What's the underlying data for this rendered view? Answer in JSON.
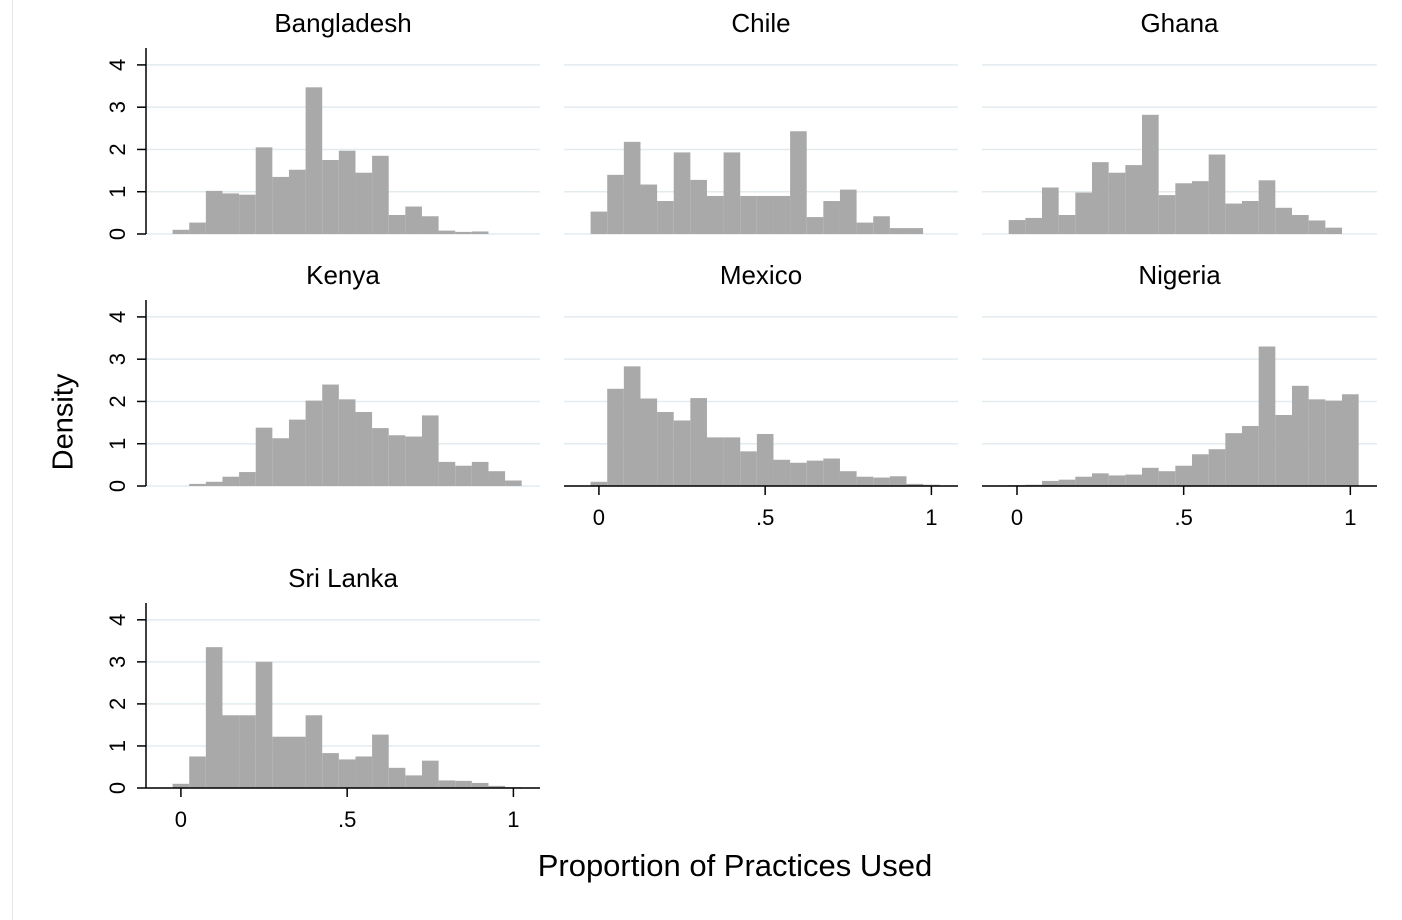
{
  "ylabel": "Density",
  "xlabel": "Proportion of Practices Used",
  "chart_data": [
    {
      "type": "histogram",
      "title": "Bangladesh",
      "color": "#a9a9a9",
      "grid": true,
      "bins": [
        -0.025,
        0.025,
        0.075,
        0.125,
        0.175,
        0.225,
        0.275,
        0.325,
        0.375,
        0.425,
        0.475,
        0.525,
        0.575,
        0.625,
        0.675,
        0.725,
        0.775,
        0.825,
        0.875,
        0.925,
        0.975,
        1.025
      ],
      "values": [
        0.1,
        0.27,
        1.02,
        0.96,
        0.93,
        2.05,
        1.35,
        1.52,
        3.47,
        1.75,
        1.97,
        1.45,
        1.85,
        0.45,
        0.65,
        0.42,
        0.08,
        0.05,
        0.06,
        0,
        0
      ],
      "xlim": [
        -0.105,
        1.08
      ],
      "ylim": [
        0,
        4.4
      ],
      "yticks": [
        0,
        1,
        2,
        3,
        4
      ]
    },
    {
      "type": "histogram",
      "title": "Chile",
      "color": "#a9a9a9",
      "grid": true,
      "bins": [
        -0.025,
        0.025,
        0.075,
        0.125,
        0.175,
        0.225,
        0.275,
        0.325,
        0.375,
        0.425,
        0.475,
        0.525,
        0.575,
        0.625,
        0.675,
        0.725,
        0.775,
        0.825,
        0.875,
        0.925,
        0.975,
        1.025
      ],
      "values": [
        0.53,
        1.4,
        2.18,
        1.17,
        0.78,
        1.93,
        1.28,
        0.9,
        1.93,
        0.9,
        0.9,
        0.9,
        2.43,
        0.4,
        0.78,
        1.05,
        0.27,
        0.42,
        0.14,
        0.14,
        0
      ],
      "xlim": [
        -0.105,
        1.08
      ],
      "ylim": [
        0,
        4.4
      ],
      "yticks": [
        0,
        1,
        2,
        3,
        4
      ]
    },
    {
      "type": "histogram",
      "title": "Ghana",
      "color": "#a9a9a9",
      "grid": true,
      "bins": [
        -0.025,
        0.025,
        0.075,
        0.125,
        0.175,
        0.225,
        0.275,
        0.325,
        0.375,
        0.425,
        0.475,
        0.525,
        0.575,
        0.625,
        0.675,
        0.725,
        0.775,
        0.825,
        0.875,
        0.925,
        0.975,
        1.025
      ],
      "values": [
        0.33,
        0.38,
        1.1,
        0.45,
        0.98,
        1.7,
        1.45,
        1.63,
        2.82,
        0.92,
        1.2,
        1.25,
        1.88,
        0.72,
        0.78,
        1.27,
        0.62,
        0.45,
        0.32,
        0.15,
        0
      ],
      "xlim": [
        -0.105,
        1.08
      ],
      "ylim": [
        0,
        4.4
      ],
      "yticks": [
        0,
        1,
        2,
        3,
        4
      ]
    },
    {
      "type": "histogram",
      "title": "Kenya",
      "color": "#a9a9a9",
      "grid": true,
      "bins": [
        -0.025,
        0.025,
        0.075,
        0.125,
        0.175,
        0.225,
        0.275,
        0.325,
        0.375,
        0.425,
        0.475,
        0.525,
        0.575,
        0.625,
        0.675,
        0.725,
        0.775,
        0.825,
        0.875,
        0.925,
        0.975,
        1.025
      ],
      "values": [
        0,
        0.05,
        0.1,
        0.22,
        0.33,
        1.38,
        1.13,
        1.57,
        2.02,
        2.4,
        2.05,
        1.75,
        1.37,
        1.2,
        1.17,
        1.67,
        0.57,
        0.48,
        0.57,
        0.35,
        0.13
      ],
      "xlim": [
        -0.105,
        1.08
      ],
      "ylim": [
        0,
        4.4
      ],
      "yticks": [
        0,
        1,
        2,
        3,
        4
      ]
    },
    {
      "type": "histogram",
      "title": "Mexico",
      "color": "#a9a9a9",
      "grid": true,
      "bins": [
        -0.025,
        0.025,
        0.075,
        0.125,
        0.175,
        0.225,
        0.275,
        0.325,
        0.375,
        0.425,
        0.475,
        0.525,
        0.575,
        0.625,
        0.675,
        0.725,
        0.775,
        0.825,
        0.875,
        0.925,
        0.975,
        1.025
      ],
      "values": [
        0.1,
        2.3,
        2.83,
        2.07,
        1.75,
        1.55,
        2.08,
        1.15,
        1.15,
        0.82,
        1.23,
        0.62,
        0.55,
        0.6,
        0.65,
        0.35,
        0.22,
        0.2,
        0.23,
        0.05,
        0.03
      ],
      "xlim": [
        -0.105,
        1.08
      ],
      "ylim": [
        0,
        4.4
      ],
      "yticks": [
        0,
        1,
        2,
        3,
        4
      ],
      "xticks": [
        0,
        {
          "value": 0.5,
          "label": ".5"
        },
        1
      ]
    },
    {
      "type": "histogram",
      "title": "Nigeria",
      "color": "#a9a9a9",
      "grid": true,
      "bins": [
        -0.025,
        0.025,
        0.075,
        0.125,
        0.175,
        0.225,
        0.275,
        0.325,
        0.375,
        0.425,
        0.475,
        0.525,
        0.575,
        0.625,
        0.675,
        0.725,
        0.775,
        0.825,
        0.875,
        0.925,
        0.975,
        1.025
      ],
      "values": [
        0.02,
        0.03,
        0.12,
        0.15,
        0.22,
        0.3,
        0.25,
        0.27,
        0.43,
        0.35,
        0.48,
        0.75,
        0.87,
        1.25,
        1.42,
        3.3,
        1.68,
        2.37,
        2.05,
        2.02,
        2.17
      ],
      "xlim": [
        -0.105,
        1.08
      ],
      "ylim": [
        0,
        4.4
      ],
      "yticks": [
        0,
        1,
        2,
        3,
        4
      ],
      "xticks": [
        0,
        {
          "value": 0.5,
          "label": ".5"
        },
        1
      ]
    },
    {
      "type": "histogram",
      "title": "Sri Lanka",
      "color": "#a9a9a9",
      "grid": true,
      "bins": [
        -0.025,
        0.025,
        0.075,
        0.125,
        0.175,
        0.225,
        0.275,
        0.325,
        0.375,
        0.425,
        0.475,
        0.525,
        0.575,
        0.625,
        0.675,
        0.725,
        0.775,
        0.825,
        0.875,
        0.925,
        0.975,
        1.025
      ],
      "values": [
        0.1,
        0.75,
        3.35,
        1.73,
        1.73,
        3.0,
        1.22,
        1.22,
        1.73,
        0.83,
        0.68,
        0.75,
        1.27,
        0.48,
        0.3,
        0.65,
        0.18,
        0.17,
        0.12,
        0.05,
        0.02
      ],
      "xlim": [
        -0.105,
        1.08
      ],
      "ylim": [
        0,
        4.4
      ],
      "yticks": [
        0,
        1,
        2,
        3,
        4
      ],
      "xticks": [
        0,
        {
          "value": 0.5,
          "label": ".5"
        },
        1
      ]
    }
  ]
}
